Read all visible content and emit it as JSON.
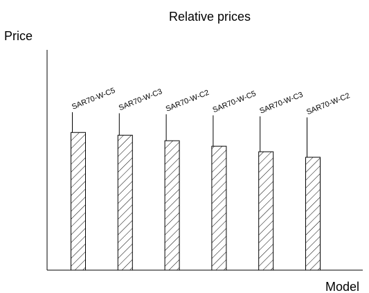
{
  "chart_data": {
    "type": "bar",
    "title": "Relative prices",
    "xlabel": "Model",
    "ylabel": "Price",
    "categories": [
      "SAR70-W-C5",
      "SAR70-W-C3",
      "SAR70-W-C2",
      "SAR70-W-C5",
      "SAR70-W-C3",
      "SAR70-W-C2"
    ],
    "values": [
      100,
      98,
      94,
      90,
      86,
      82
    ],
    "ylim": [
      0,
      160
    ],
    "y_ticks_shown": false,
    "grid": false,
    "legend": "none",
    "bar_fill": "diagonal-hatch",
    "colors": {
      "bar_stroke": "#000000",
      "hatch": "#000000",
      "background": "#ffffff",
      "axis": "#000000"
    }
  }
}
